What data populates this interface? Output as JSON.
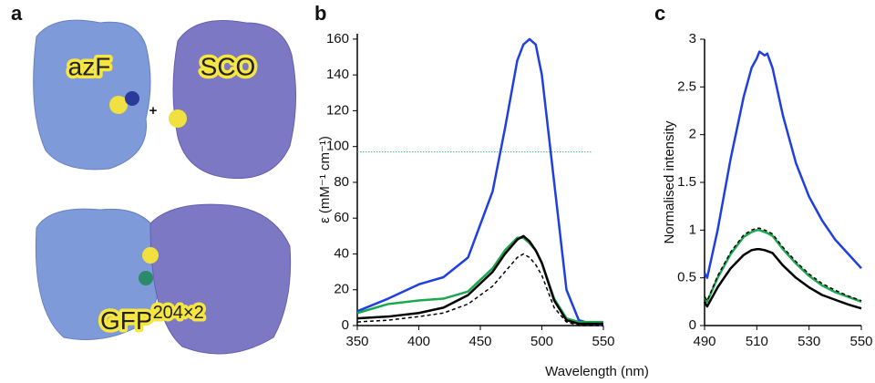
{
  "panel_a": {
    "label": "a",
    "top_left": "azF",
    "plus": "+",
    "top_right": "SCO",
    "bottom": "GFP",
    "bottom_sup": "204×2"
  },
  "x_label": "Wavelength (nm)",
  "chart_data": [
    {
      "type": "line",
      "panel_label": "b",
      "y_label": "ε (mM⁻¹ cm⁻¹)",
      "x": [
        350,
        375,
        400,
        420,
        440,
        460,
        470,
        480,
        485,
        490,
        495,
        500,
        510,
        520,
        530,
        540,
        550
      ],
      "xlim": [
        350,
        550
      ],
      "xticks": [
        350,
        400,
        450,
        500,
        550
      ],
      "ylim": [
        0,
        163
      ],
      "yticks": [
        0,
        20,
        40,
        60,
        80,
        100,
        120,
        140,
        160
      ],
      "hlines": [
        {
          "value": 97,
          "color": "#3cb878"
        }
      ],
      "series": [
        {
          "color": "#1f3fe0",
          "dash": false,
          "values": [
            8,
            15,
            23,
            27,
            38,
            75,
            110,
            148,
            157,
            160,
            157,
            140,
            80,
            20,
            3,
            1,
            0
          ]
        },
        {
          "color": "#1aa84e",
          "dash": false,
          "values": [
            7,
            12,
            14,
            15,
            19,
            32,
            42,
            49,
            49,
            46,
            42,
            35,
            15,
            4,
            2,
            2,
            2
          ]
        },
        {
          "color": "#000000",
          "dash": false,
          "values": [
            4,
            5,
            7,
            10,
            17,
            30,
            40,
            48,
            50,
            47,
            42,
            35,
            14,
            3,
            1,
            1,
            1
          ]
        },
        {
          "color": "#000000",
          "dash": true,
          "values": [
            2,
            3,
            5,
            7,
            12,
            22,
            30,
            38,
            40,
            38,
            34,
            28,
            10,
            2,
            0,
            0,
            0
          ]
        }
      ]
    },
    {
      "type": "line",
      "panel_label": "c",
      "y_label": "Normalised intensity",
      "x": [
        490,
        491,
        495,
        500,
        505,
        508,
        510,
        511,
        513,
        514,
        516,
        520,
        525,
        530,
        535,
        540,
        545,
        550
      ],
      "xlim": [
        490,
        550
      ],
      "xticks": [
        490,
        510,
        530,
        550
      ],
      "ylim": [
        0,
        3
      ],
      "yticks": [
        0,
        0.5,
        1,
        1.5,
        2,
        2.5,
        3
      ],
      "series": [
        {
          "color": "#1f3fe0",
          "dash": false,
          "values": [
            0.55,
            0.5,
            1.0,
            1.75,
            2.4,
            2.7,
            2.8,
            2.87,
            2.83,
            2.85,
            2.7,
            2.2,
            1.7,
            1.35,
            1.1,
            0.9,
            0.75,
            0.6
          ]
        },
        {
          "color": "#1aa84e",
          "dash": false,
          "values": [
            0.3,
            0.25,
            0.5,
            0.75,
            0.93,
            0.98,
            1.0,
            1.0,
            0.98,
            0.97,
            0.94,
            0.8,
            0.65,
            0.52,
            0.42,
            0.35,
            0.3,
            0.25
          ]
        },
        {
          "color": "#000000",
          "dash": false,
          "values": [
            0.25,
            0.2,
            0.4,
            0.6,
            0.74,
            0.79,
            0.8,
            0.8,
            0.79,
            0.78,
            0.76,
            0.63,
            0.5,
            0.4,
            0.32,
            0.27,
            0.22,
            0.18
          ]
        },
        {
          "color": "#000000",
          "dash": true,
          "values": [
            0.3,
            0.26,
            0.52,
            0.77,
            0.95,
            1.0,
            1.02,
            1.02,
            1.0,
            0.99,
            0.96,
            0.82,
            0.67,
            0.54,
            0.44,
            0.37,
            0.31,
            0.26
          ]
        }
      ]
    }
  ]
}
